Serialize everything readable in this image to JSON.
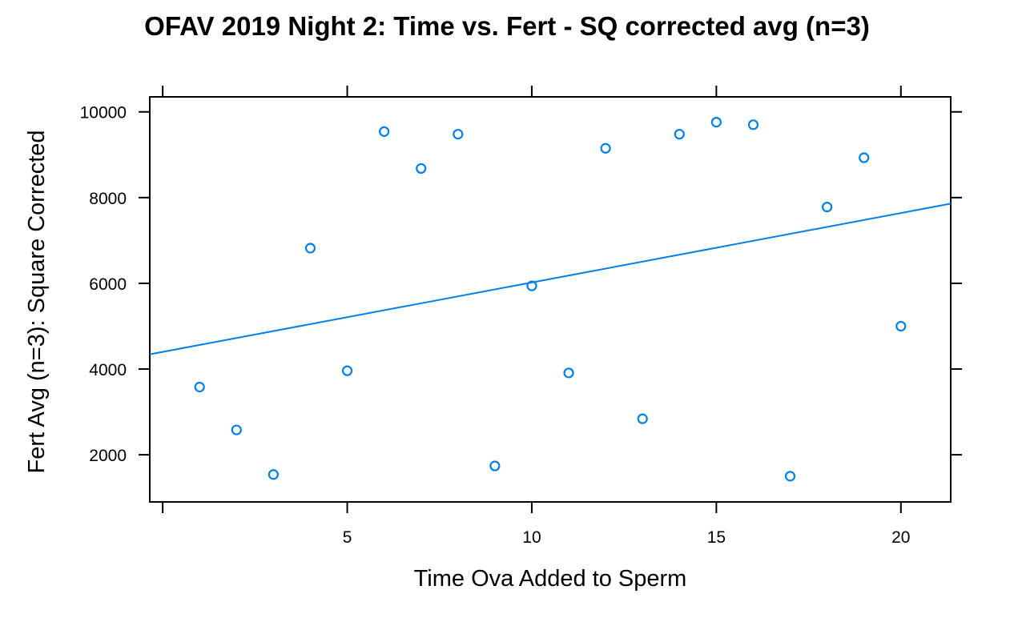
{
  "chart_data": {
    "type": "scatter",
    "title": "OFAV 2019 Night 2: Time vs. Fert - SQ corrected avg (n=3)",
    "xlabel": "Time Ova Added to Sperm",
    "ylabel": "Fert Avg (n=3): Square Corrected",
    "xlim": [
      -0.35,
      21.35
    ],
    "ylim": [
      900,
      10350
    ],
    "x_ticks": [
      5,
      10,
      15,
      20
    ],
    "x_tick_marks": [
      0,
      5,
      10,
      15,
      20
    ],
    "y_ticks": [
      2000,
      4000,
      6000,
      8000,
      10000
    ],
    "grid": false,
    "point_color": "#0080e6",
    "line_color": "#0080e6",
    "points": [
      {
        "x": 1,
        "y": 3580
      },
      {
        "x": 2,
        "y": 2580
      },
      {
        "x": 3,
        "y": 1540
      },
      {
        "x": 4,
        "y": 6820
      },
      {
        "x": 5,
        "y": 3960
      },
      {
        "x": 6,
        "y": 9540
      },
      {
        "x": 7,
        "y": 8680
      },
      {
        "x": 8,
        "y": 9480
      },
      {
        "x": 9,
        "y": 1740
      },
      {
        "x": 10,
        "y": 5940
      },
      {
        "x": 11,
        "y": 3910
      },
      {
        "x": 12,
        "y": 9150
      },
      {
        "x": 13,
        "y": 2840
      },
      {
        "x": 14,
        "y": 9480
      },
      {
        "x": 15,
        "y": 9760
      },
      {
        "x": 16,
        "y": 9700
      },
      {
        "x": 17,
        "y": 1500
      },
      {
        "x": 18,
        "y": 7780
      },
      {
        "x": 19,
        "y": 8930
      },
      {
        "x": 20,
        "y": 5000
      }
    ],
    "trend_line": {
      "intercept": 4400,
      "slope": 162
    }
  }
}
